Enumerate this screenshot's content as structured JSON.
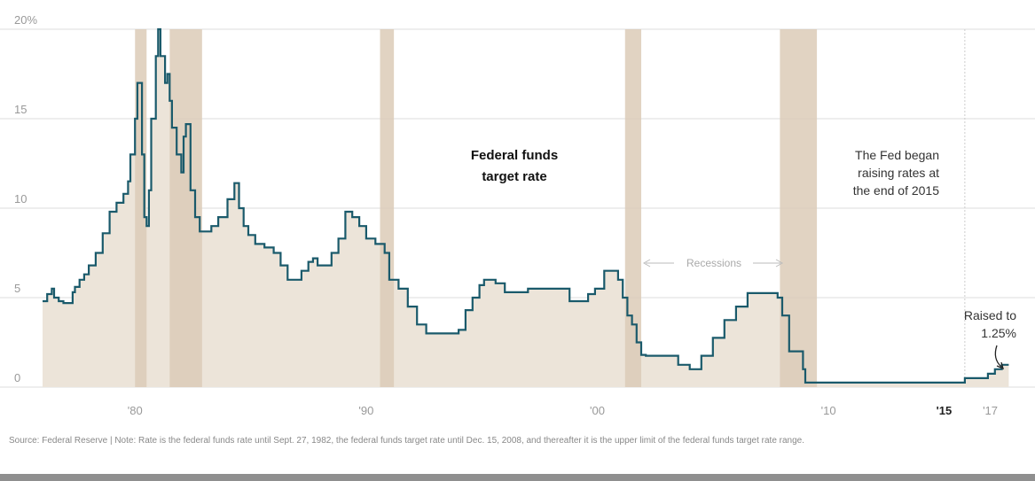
{
  "chart_data": {
    "type": "area",
    "title_lines": [
      "Federal funds",
      "target rate"
    ],
    "xlim": [
      1976,
      2017.9
    ],
    "ylim": [
      0,
      20
    ],
    "y_ticks": [
      {
        "value": 0,
        "label": "0"
      },
      {
        "value": 5,
        "label": "5"
      },
      {
        "value": 10,
        "label": "10"
      },
      {
        "value": 15,
        "label": "15"
      },
      {
        "value": 20,
        "label": "20%"
      }
    ],
    "x_ticks": [
      {
        "value": 1980,
        "label": "'80",
        "bold": false
      },
      {
        "value": 1990,
        "label": "'90",
        "bold": false
      },
      {
        "value": 2000,
        "label": "'00",
        "bold": false
      },
      {
        "value": 2010,
        "label": "'10",
        "bold": false
      },
      {
        "value": 2015,
        "label": "'15",
        "bold": true
      },
      {
        "value": 2017,
        "label": "'17",
        "bold": false
      }
    ],
    "recessions": [
      [
        1980.0,
        1980.5
      ],
      [
        1981.5,
        1982.9
      ],
      [
        1990.6,
        1991.2
      ],
      [
        2001.2,
        2001.9
      ],
      [
        2007.9,
        2009.5
      ]
    ],
    "recessions_label": "Recessions",
    "series": [
      {
        "name": "Federal funds target rate",
        "color": "#1a5a6b",
        "x": [
          1976.0,
          1976.2,
          1976.4,
          1976.5,
          1976.7,
          1976.9,
          1977.1,
          1977.3,
          1977.4,
          1977.6,
          1977.8,
          1978.0,
          1978.3,
          1978.6,
          1978.9,
          1979.2,
          1979.5,
          1979.7,
          1979.8,
          1980.0,
          1980.1,
          1980.3,
          1980.4,
          1980.5,
          1980.6,
          1980.7,
          1980.9,
          1981.0,
          1981.1,
          1981.3,
          1981.4,
          1981.5,
          1981.6,
          1981.8,
          1982.0,
          1982.1,
          1982.2,
          1982.4,
          1982.6,
          1982.8,
          1983.0,
          1983.3,
          1983.6,
          1984.0,
          1984.3,
          1984.5,
          1984.7,
          1984.9,
          1985.2,
          1985.6,
          1986.0,
          1986.3,
          1986.6,
          1986.9,
          1987.2,
          1987.5,
          1987.7,
          1987.9,
          1988.2,
          1988.5,
          1988.8,
          1989.1,
          1989.4,
          1989.7,
          1990.0,
          1990.4,
          1990.8,
          1991.0,
          1991.4,
          1991.8,
          1992.2,
          1992.6,
          1993.0,
          1993.6,
          1994.0,
          1994.3,
          1994.6,
          1994.9,
          1995.1,
          1995.6,
          1996.0,
          1997.0,
          1997.4,
          1998.0,
          1998.8,
          1999.3,
          1999.6,
          1999.9,
          2000.3,
          2000.6,
          2000.9,
          2001.1,
          2001.3,
          2001.5,
          2001.7,
          2001.9,
          2002.1,
          2002.8,
          2003.5,
          2004.0,
          2004.5,
          2005.0,
          2005.5,
          2006.0,
          2006.5,
          2007.0,
          2007.6,
          2007.8,
          2008.0,
          2008.3,
          2008.6,
          2008.9,
          2009.0,
          2010.0,
          2011.0,
          2012.0,
          2013.0,
          2014.0,
          2015.0,
          2015.9,
          2016.9,
          2017.2,
          2017.5,
          2017.8
        ],
        "values": [
          4.8,
          5.2,
          5.5,
          5.0,
          4.8,
          4.7,
          4.7,
          5.3,
          5.6,
          6.0,
          6.3,
          6.8,
          7.5,
          8.6,
          9.8,
          10.3,
          10.8,
          11.5,
          13.0,
          15.0,
          17.0,
          13.0,
          9.5,
          9.0,
          11.0,
          15.0,
          18.5,
          20.0,
          18.5,
          17.0,
          17.5,
          16.0,
          14.5,
          13.0,
          12.0,
          14.0,
          14.7,
          11.0,
          9.5,
          8.7,
          8.7,
          9.0,
          9.5,
          10.5,
          11.4,
          10.0,
          9.0,
          8.5,
          8.0,
          7.8,
          7.5,
          6.8,
          6.0,
          6.0,
          6.5,
          7.0,
          7.2,
          6.8,
          6.8,
          7.5,
          8.3,
          9.8,
          9.5,
          9.0,
          8.3,
          8.0,
          7.5,
          6.0,
          5.5,
          4.5,
          3.5,
          3.0,
          3.0,
          3.0,
          3.2,
          4.3,
          5.0,
          5.7,
          6.0,
          5.8,
          5.3,
          5.5,
          5.5,
          5.5,
          4.8,
          4.8,
          5.2,
          5.5,
          6.5,
          6.5,
          6.0,
          5.0,
          4.0,
          3.5,
          2.5,
          1.8,
          1.75,
          1.75,
          1.25,
          1.0,
          1.75,
          2.75,
          3.75,
          4.5,
          5.25,
          5.25,
          5.25,
          5.0,
          4.0,
          2.0,
          2.0,
          1.0,
          0.25,
          0.25,
          0.25,
          0.25,
          0.25,
          0.25,
          0.25,
          0.5,
          0.75,
          1.0,
          1.25,
          1.25
        ]
      }
    ]
  },
  "annotations": {
    "fed_note_lines": [
      "The Fed began",
      "raising rates at",
      "the end of 2015"
    ],
    "raised_lines": [
      "Raised to",
      "1.25%"
    ]
  },
  "colors": {
    "area_fill": "#ece4d9",
    "recession_fill": "#dccbb7",
    "line": "#1a5a6b",
    "grid": "#dddddd"
  },
  "source": "Source: Federal Reserve  |  Note: Rate is the federal funds rate until Sept. 27, 1982, the federal funds target rate until Dec. 15, 2008, and thereafter it is the upper limit of the federal funds target rate range."
}
